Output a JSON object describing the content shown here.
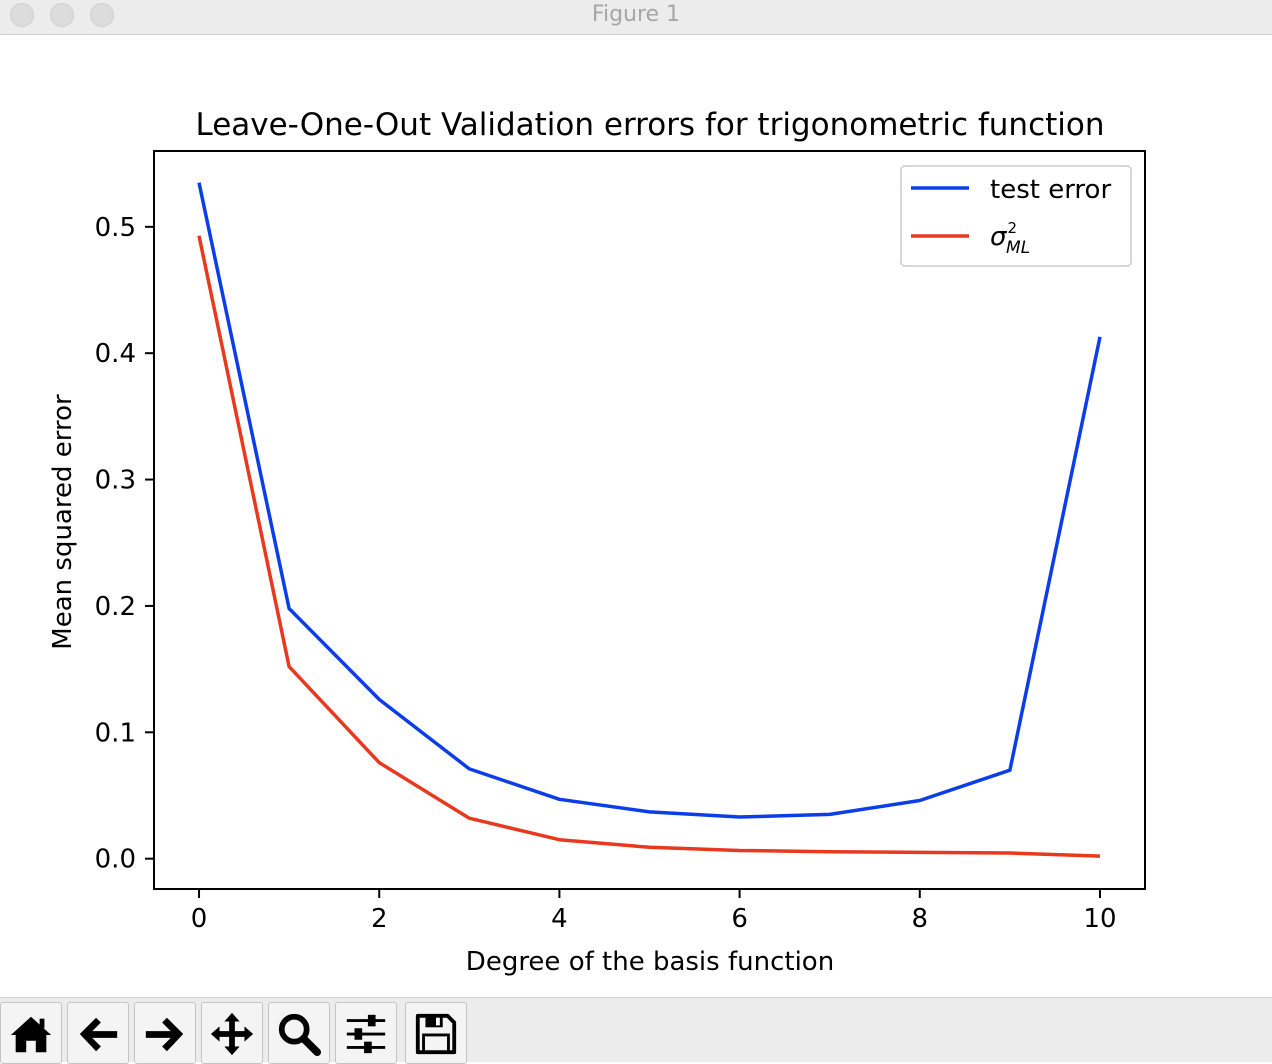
{
  "window": {
    "title": "Figure 1"
  },
  "toolbar": {
    "buttons": [
      {
        "icon": "home-icon"
      },
      {
        "icon": "back-arrow-icon"
      },
      {
        "icon": "forward-arrow-icon"
      },
      {
        "icon": "pan-icon"
      },
      {
        "icon": "zoom-icon"
      },
      {
        "icon": "configure-subplots-icon"
      },
      {
        "icon": "save-icon"
      }
    ]
  },
  "chart_data": {
    "type": "line",
    "title": "Leave-One-Out Validation errors for trigonometric function",
    "xlabel": "Degree of the basis function",
    "ylabel": "Mean squared error",
    "xlim": [
      -0.5,
      10.5
    ],
    "ylim": [
      -0.024,
      0.56
    ],
    "xticks": [
      0,
      2,
      4,
      6,
      8,
      10
    ],
    "xtick_labels": [
      "0",
      "2",
      "4",
      "6",
      "8",
      "10"
    ],
    "yticks": [
      0.0,
      0.1,
      0.2,
      0.3,
      0.4,
      0.5
    ],
    "ytick_labels": [
      "0.0",
      "0.1",
      "0.2",
      "0.3",
      "0.4",
      "0.5"
    ],
    "grid": false,
    "legend_position": "top-right",
    "x": [
      0,
      1,
      2,
      3,
      4,
      5,
      6,
      7,
      8,
      9,
      10
    ],
    "series": [
      {
        "name": "test error",
        "color": "#0b3ee8",
        "values": [
          0.535,
          0.198,
          0.126,
          0.071,
          0.047,
          0.037,
          0.033,
          0.035,
          0.046,
          0.07,
          0.413
        ]
      },
      {
        "name_main": "σ",
        "name_sup": "2",
        "name_sub": "ML",
        "color": "#e8391f",
        "values": [
          0.493,
          0.152,
          0.076,
          0.032,
          0.015,
          0.009,
          0.0065,
          0.0055,
          0.005,
          0.0045,
          0.002
        ]
      }
    ]
  }
}
